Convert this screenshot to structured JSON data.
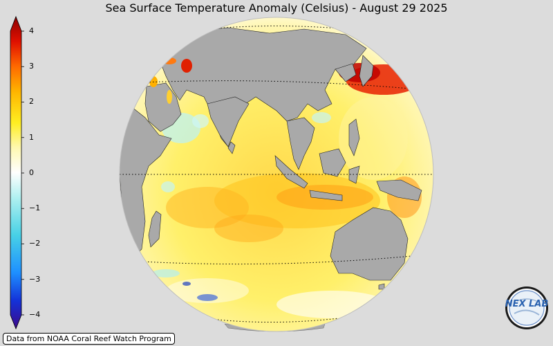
{
  "title": "Sea Surface Temperature Anomaly (Celsius) - August 29 2025",
  "colorbar": {
    "tick_labels": [
      "4",
      "3",
      "2",
      "1",
      "0",
      "−1",
      "−2",
      "−3",
      "−4"
    ],
    "min": -4,
    "max": 4,
    "colors": [
      "#3d0a8a",
      "#1432d8",
      "#1e90ff",
      "#48d1e6",
      "#b0f0f0",
      "#ffffff",
      "#fff8b0",
      "#ffee22",
      "#ffb400",
      "#ff6a00",
      "#e01000",
      "#8b0000"
    ]
  },
  "credit": "Data from NOAA Coral Reef Watch Program",
  "logo": {
    "text": "NEX LAB",
    "icon": "nexlab-globe-logo-icon"
  },
  "map": {
    "land_color": "#a9a9a9",
    "background_color": "#dcdcdc",
    "gridline_style": "dotted"
  }
}
